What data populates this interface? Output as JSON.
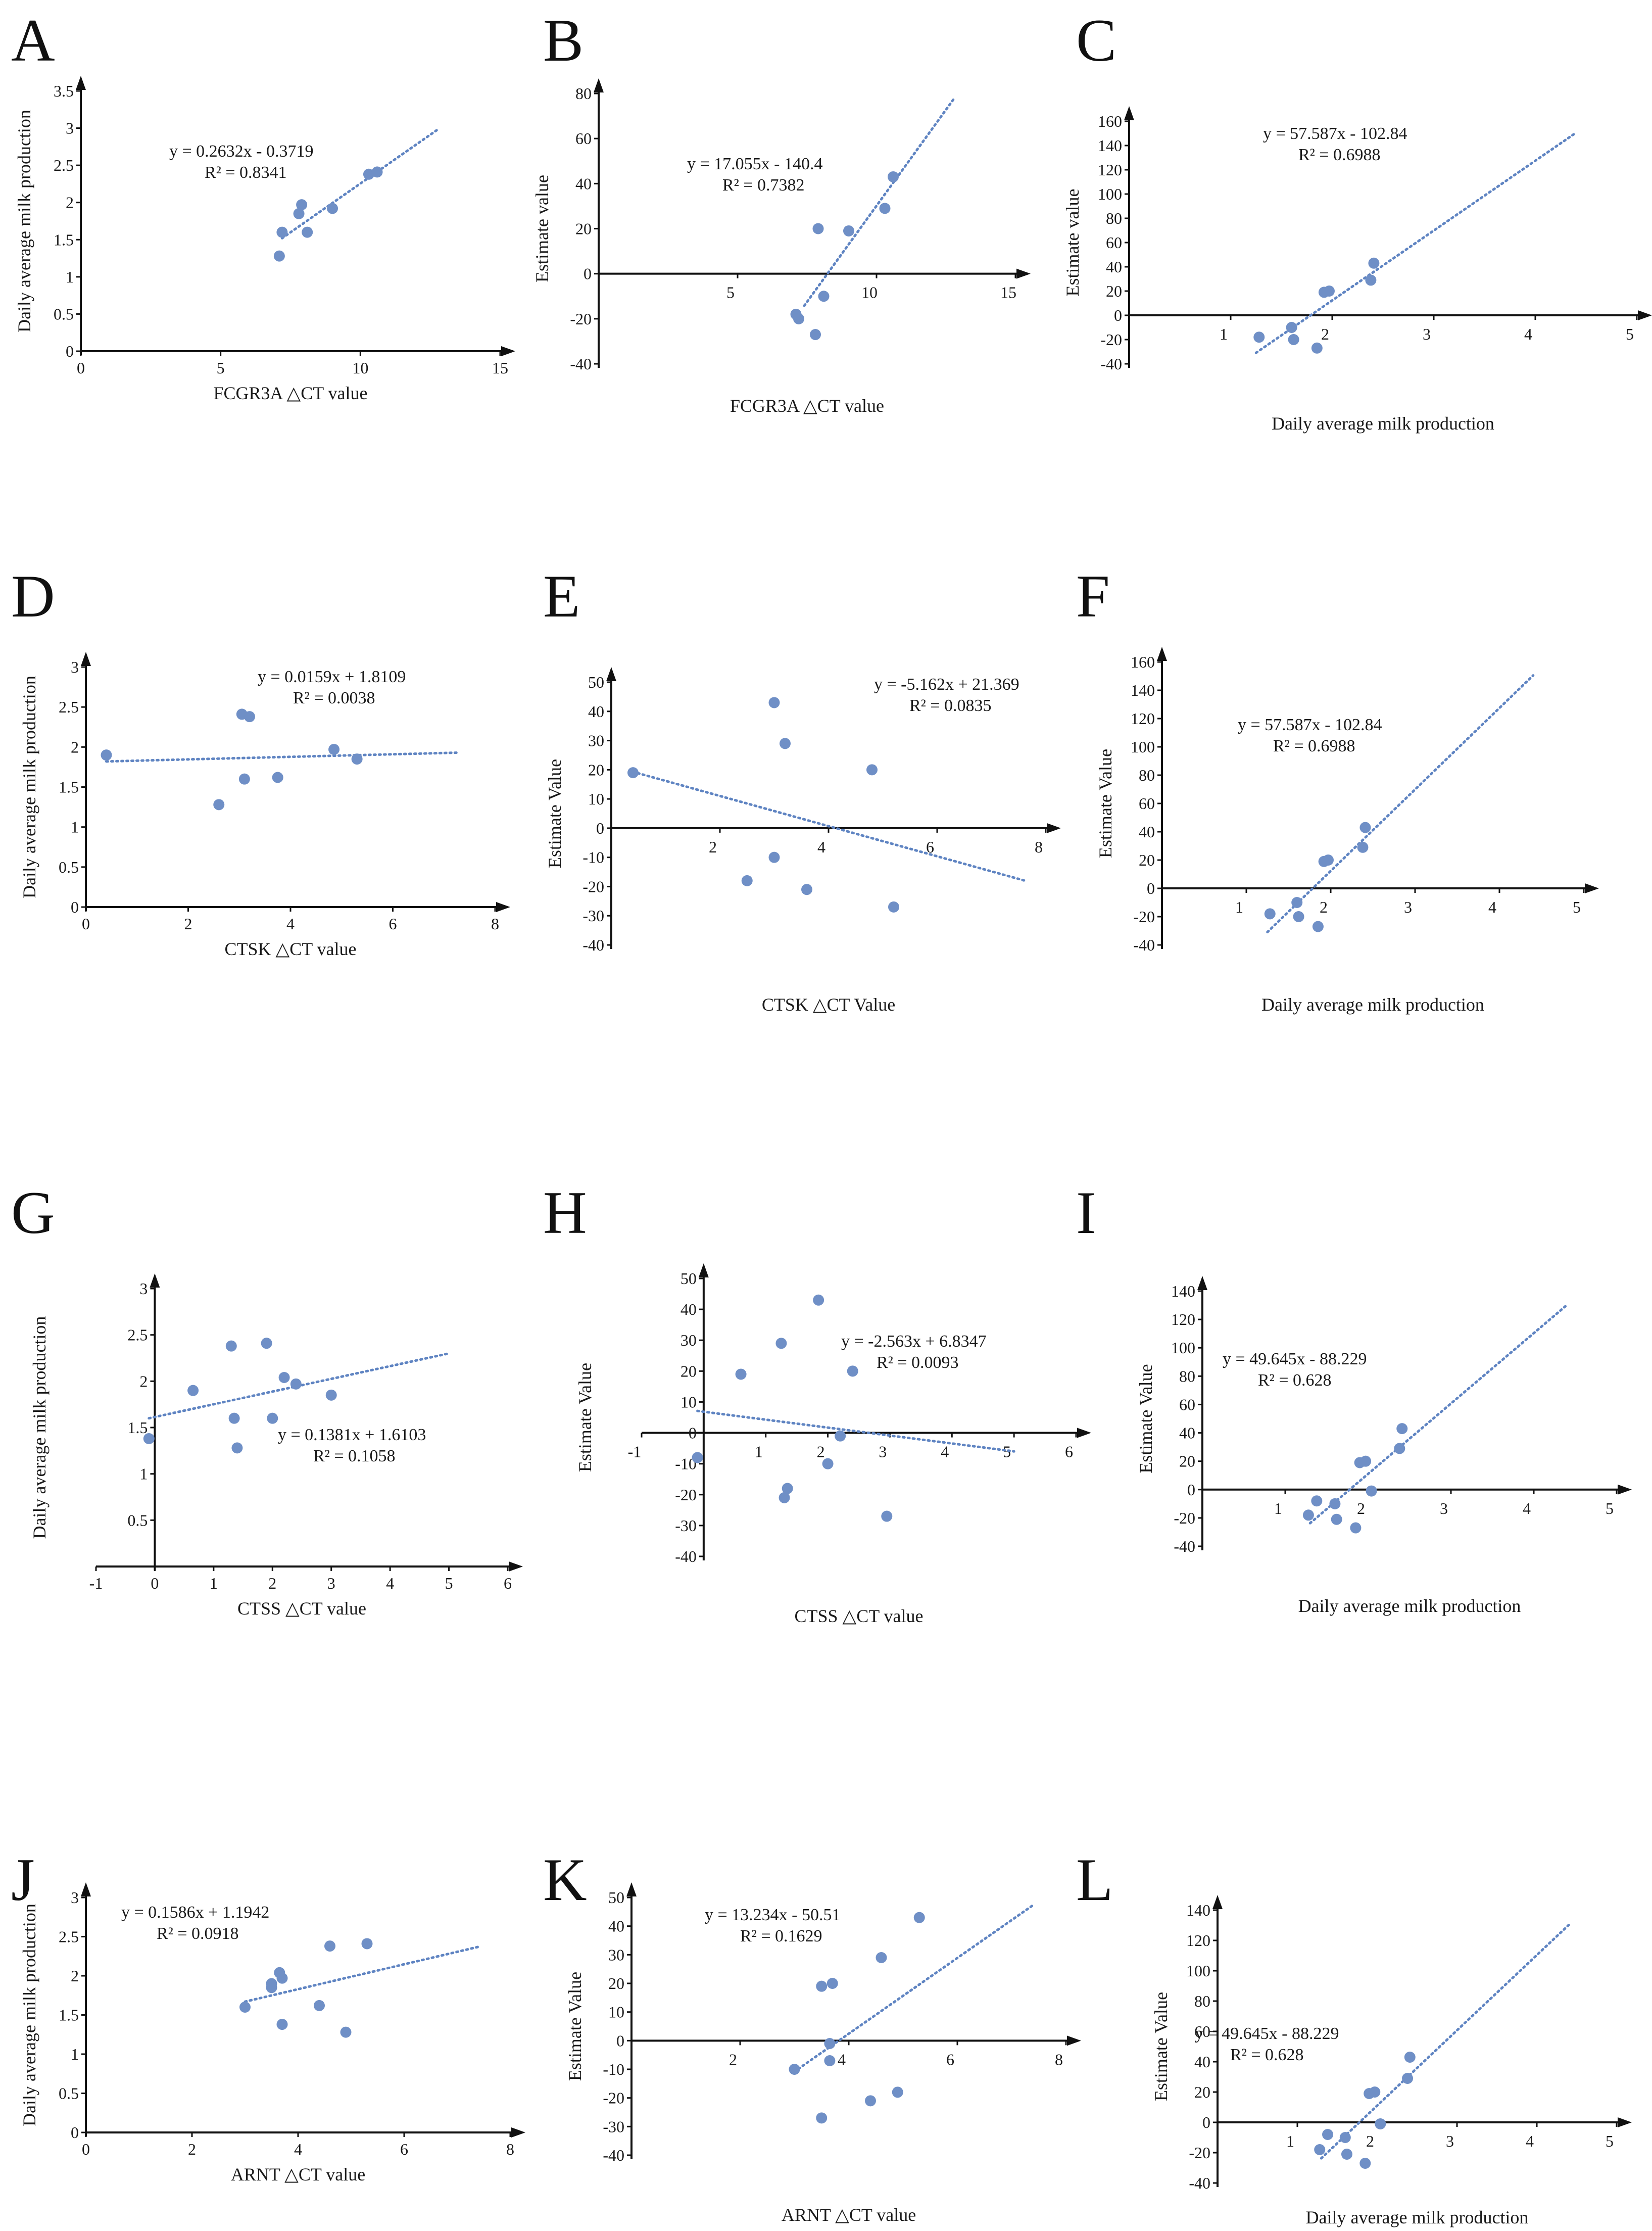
{
  "figure": {
    "point_color": "#6f8fc6",
    "trend_color": "#5f84c2",
    "axis_color": "#111111"
  },
  "chart_data": [
    {
      "type": "scatter",
      "panel": "A",
      "xlabel": "FCGR3A △CT value",
      "ylabel": "Daily  average milk production",
      "xlim": [
        0,
        15
      ],
      "ylim": [
        0,
        3.5
      ],
      "xticks": [
        0,
        5,
        10,
        15
      ],
      "yticks": [
        0,
        0.5,
        1,
        1.5,
        2,
        2.5,
        3,
        3.5
      ],
      "equation": "y = 0.2632x - 0.3719",
      "r2": "R² = 0.8341",
      "points": [
        [
          7.1,
          1.28
        ],
        [
          7.2,
          1.6
        ],
        [
          7.8,
          1.85
        ],
        [
          7.9,
          1.97
        ],
        [
          8.1,
          1.6
        ],
        [
          9.0,
          1.92
        ],
        [
          10.3,
          2.38
        ],
        [
          10.6,
          2.41
        ]
      ],
      "trend": [
        [
          7.2,
          1.52
        ],
        [
          12.8,
          2.99
        ]
      ]
    },
    {
      "type": "scatter",
      "panel": "B",
      "xlabel": "FCGR3A △CT value",
      "ylabel": "Estimate value",
      "xlim": [
        0,
        15
      ],
      "ylim": [
        -40,
        80
      ],
      "xticks": [
        5,
        10,
        15
      ],
      "yticks": [
        -40,
        -20,
        0,
        20,
        40,
        60,
        80
      ],
      "equation": "y = 17.055x - 140.4",
      "r2": "R² = 0.7382",
      "points": [
        [
          7.1,
          -18
        ],
        [
          7.2,
          -20
        ],
        [
          7.8,
          -27
        ],
        [
          7.9,
          20
        ],
        [
          8.1,
          -10
        ],
        [
          9.0,
          19
        ],
        [
          10.3,
          29
        ],
        [
          10.6,
          43
        ]
      ],
      "trend": [
        [
          7.4,
          -14.2
        ],
        [
          12.8,
          77.9
        ]
      ]
    },
    {
      "type": "scatter",
      "panel": "C",
      "xlabel": "Daily average milk production",
      "ylabel": "Estimate value",
      "xlim": [
        0,
        5
      ],
      "ylim": [
        -40,
        160
      ],
      "xticks": [
        1,
        2,
        3,
        4,
        5
      ],
      "yticks": [
        -40,
        -20,
        0,
        20,
        40,
        60,
        80,
        100,
        120,
        140,
        160
      ],
      "equation": "y = 57.587x - 102.84",
      "r2": "R² = 0.6988",
      "points": [
        [
          1.28,
          -18
        ],
        [
          1.6,
          -10
        ],
        [
          1.62,
          -20
        ],
        [
          1.85,
          -27
        ],
        [
          1.92,
          19
        ],
        [
          1.97,
          20
        ],
        [
          2.38,
          29
        ],
        [
          2.41,
          43
        ]
      ],
      "trend": [
        [
          1.25,
          -30.9
        ],
        [
          4.4,
          150.5
        ]
      ]
    },
    {
      "type": "scatter",
      "panel": "D",
      "xlabel": "CTSK △CT value",
      "ylabel": "Daily average milk  production",
      "xlim": [
        0,
        8
      ],
      "ylim": [
        0,
        3
      ],
      "xticks": [
        0,
        2,
        4,
        6,
        8
      ],
      "yticks": [
        0,
        0.5,
        1,
        1.5,
        2,
        2.5,
        3
      ],
      "equation": "y = 0.0159x + 1.8109",
      "r2": "R² = 0.0038",
      "points": [
        [
          0.4,
          1.9
        ],
        [
          2.6,
          1.28
        ],
        [
          3.05,
          2.41
        ],
        [
          3.1,
          1.6
        ],
        [
          3.2,
          2.38
        ],
        [
          3.75,
          1.62
        ],
        [
          4.85,
          1.97
        ],
        [
          5.3,
          1.85
        ]
      ],
      "trend": [
        [
          0.4,
          1.82
        ],
        [
          7.3,
          1.93
        ]
      ]
    },
    {
      "type": "scatter",
      "panel": "E",
      "xlabel": "CTSK  △CT Value",
      "ylabel": "Estimate Value",
      "xlim": [
        0,
        8
      ],
      "ylim": [
        -40,
        50
      ],
      "xticks": [
        2,
        4,
        6,
        8
      ],
      "yticks": [
        -40,
        -30,
        -20,
        -10,
        0,
        10,
        20,
        30,
        40,
        50
      ],
      "equation": "y = -5.162x + 21.369",
      "r2": "R² = 0.0835",
      "points": [
        [
          0.4,
          19
        ],
        [
          2.5,
          -18
        ],
        [
          3.0,
          43
        ],
        [
          3.0,
          -10
        ],
        [
          3.2,
          29
        ],
        [
          3.6,
          -21
        ],
        [
          4.8,
          20
        ],
        [
          5.2,
          -27
        ]
      ],
      "trend": [
        [
          0.4,
          19.3
        ],
        [
          7.6,
          -17.9
        ]
      ]
    },
    {
      "type": "scatter",
      "panel": "F",
      "xlabel": "Daily average milk production",
      "ylabel": "Estimate Value",
      "xlim": [
        0,
        5
      ],
      "ylim": [
        -40,
        160
      ],
      "xticks": [
        1,
        2,
        3,
        4,
        5
      ],
      "yticks": [
        -40,
        -20,
        0,
        20,
        40,
        60,
        80,
        100,
        120,
        140,
        160
      ],
      "equation": "y = 57.587x - 102.84",
      "r2": "R² = 0.6988",
      "points": [
        [
          1.28,
          -18
        ],
        [
          1.6,
          -10
        ],
        [
          1.62,
          -20
        ],
        [
          1.85,
          -27
        ],
        [
          1.92,
          19
        ],
        [
          1.97,
          20
        ],
        [
          2.38,
          29
        ],
        [
          2.41,
          43
        ]
      ],
      "trend": [
        [
          1.25,
          -30.9
        ],
        [
          4.4,
          150.5
        ]
      ]
    },
    {
      "type": "scatter",
      "panel": "G",
      "xlabel": "CTSS  △CT value",
      "ylabel": "Daily average milk production",
      "xlim": [
        -1,
        6
      ],
      "ylim": [
        0,
        3
      ],
      "xticks": [
        -1,
        0,
        1,
        2,
        3,
        4,
        5,
        6
      ],
      "yticks": [
        0.5,
        1,
        1.5,
        2,
        2.5,
        3
      ],
      "equation": "y = 0.1381x + 1.6103",
      "r2": "R² = 0.1058",
      "points": [
        [
          -0.1,
          1.38
        ],
        [
          0.65,
          1.9
        ],
        [
          1.3,
          2.38
        ],
        [
          1.35,
          1.6
        ],
        [
          1.4,
          1.28
        ],
        [
          1.9,
          2.41
        ],
        [
          2.0,
          1.6
        ],
        [
          2.2,
          2.04
        ],
        [
          2.4,
          1.97
        ],
        [
          3.0,
          1.85
        ]
      ],
      "trend": [
        [
          -0.1,
          1.6
        ],
        [
          5.0,
          2.3
        ]
      ]
    },
    {
      "type": "scatter",
      "panel": "H",
      "xlabel": "CTSS  △CT value",
      "ylabel": "Estimate Value",
      "xlim": [
        -1,
        6
      ],
      "ylim": [
        -40,
        50
      ],
      "xticks": [
        -1,
        1,
        2,
        3,
        4,
        5,
        6
      ],
      "yticks": [
        -40,
        -30,
        -20,
        -10,
        0,
        10,
        20,
        30,
        40,
        50
      ],
      "equation": "y = -2.563x + 6.8347",
      "r2": "R² = 0.0093",
      "points": [
        [
          -0.1,
          -8
        ],
        [
          0.6,
          19
        ],
        [
          1.25,
          29
        ],
        [
          1.3,
          -21
        ],
        [
          1.35,
          -18
        ],
        [
          1.85,
          43
        ],
        [
          2.0,
          -10
        ],
        [
          2.2,
          -1
        ],
        [
          2.4,
          20
        ],
        [
          2.95,
          -27
        ]
      ],
      "trend": [
        [
          -0.1,
          7.1
        ],
        [
          5.0,
          -6.0
        ]
      ]
    },
    {
      "type": "scatter",
      "panel": "I",
      "xlabel": "Daily average milk production",
      "ylabel": "Estimate Value",
      "xlim": [
        0,
        5
      ],
      "ylim": [
        -40,
        140
      ],
      "xticks": [
        1,
        2,
        3,
        4,
        5
      ],
      "yticks": [
        -40,
        -20,
        0,
        20,
        40,
        60,
        80,
        100,
        120,
        140
      ],
      "equation": "y = 49.645x - 88.229",
      "r2": "R² = 0.628",
      "points": [
        [
          1.28,
          -18
        ],
        [
          1.38,
          -8
        ],
        [
          1.6,
          -10
        ],
        [
          1.62,
          -21
        ],
        [
          1.85,
          -27
        ],
        [
          1.9,
          19
        ],
        [
          1.97,
          20
        ],
        [
          2.04,
          -1
        ],
        [
          2.38,
          29
        ],
        [
          2.41,
          43
        ]
      ],
      "trend": [
        [
          1.3,
          -23.7
        ],
        [
          4.4,
          130.2
        ]
      ]
    },
    {
      "type": "scatter",
      "panel": "J",
      "xlabel": "ARNT  △CT value",
      "ylabel": "Daily average milk production",
      "xlim": [
        0,
        8
      ],
      "ylim": [
        0,
        3
      ],
      "xticks": [
        0,
        2,
        4,
        6,
        8
      ],
      "yticks": [
        0,
        0.5,
        1,
        1.5,
        2,
        2.5,
        3
      ],
      "equation": "y = 0.1586x + 1.1942",
      "r2": "R² = 0.0918",
      "points": [
        [
          3.0,
          1.6
        ],
        [
          3.5,
          1.85
        ],
        [
          3.5,
          1.9
        ],
        [
          3.65,
          2.04
        ],
        [
          3.7,
          1.97
        ],
        [
          3.7,
          1.38
        ],
        [
          4.4,
          1.62
        ],
        [
          4.6,
          2.38
        ],
        [
          4.9,
          1.28
        ],
        [
          5.3,
          2.41
        ]
      ],
      "trend": [
        [
          3.0,
          1.67
        ],
        [
          7.4,
          2.37
        ]
      ]
    },
    {
      "type": "scatter",
      "panel": "K",
      "xlabel": "ARNT   △CT value",
      "ylabel": "Estimate Value",
      "xlim": [
        0,
        8
      ],
      "ylim": [
        -40,
        50
      ],
      "xticks": [
        2,
        4,
        6,
        8
      ],
      "yticks": [
        -40,
        -30,
        -20,
        -10,
        0,
        10,
        20,
        30,
        40,
        50
      ],
      "equation": "y = 13.234x - 50.51",
      "r2": "R² = 0.1629",
      "points": [
        [
          3.0,
          -10
        ],
        [
          3.5,
          -27
        ],
        [
          3.5,
          19
        ],
        [
          3.7,
          20
        ],
        [
          3.65,
          -1
        ],
        [
          3.65,
          -7
        ],
        [
          4.6,
          29
        ],
        [
          4.4,
          -21
        ],
        [
          4.9,
          -18
        ],
        [
          5.3,
          43
        ]
      ],
      "trend": [
        [
          3.0,
          -10.8
        ],
        [
          7.4,
          47.4
        ]
      ]
    },
    {
      "type": "scatter",
      "panel": "L",
      "xlabel": "Daily average milk production",
      "ylabel": "Estimate Value",
      "xlim": [
        0,
        5
      ],
      "ylim": [
        -40,
        140
      ],
      "xticks": [
        1,
        2,
        3,
        4,
        5
      ],
      "yticks": [
        -40,
        -20,
        0,
        20,
        40,
        60,
        80,
        100,
        120,
        140
      ],
      "equation": "y = 49.645x - 88.229",
      "r2": "R² = 0.628",
      "points": [
        [
          1.28,
          -18
        ],
        [
          1.38,
          -8
        ],
        [
          1.6,
          -10
        ],
        [
          1.62,
          -21
        ],
        [
          1.85,
          -27
        ],
        [
          1.9,
          19
        ],
        [
          1.97,
          20
        ],
        [
          2.04,
          -1
        ],
        [
          2.38,
          29
        ],
        [
          2.41,
          43
        ]
      ],
      "trend": [
        [
          1.3,
          -23.7
        ],
        [
          4.4,
          130.2
        ]
      ]
    }
  ]
}
